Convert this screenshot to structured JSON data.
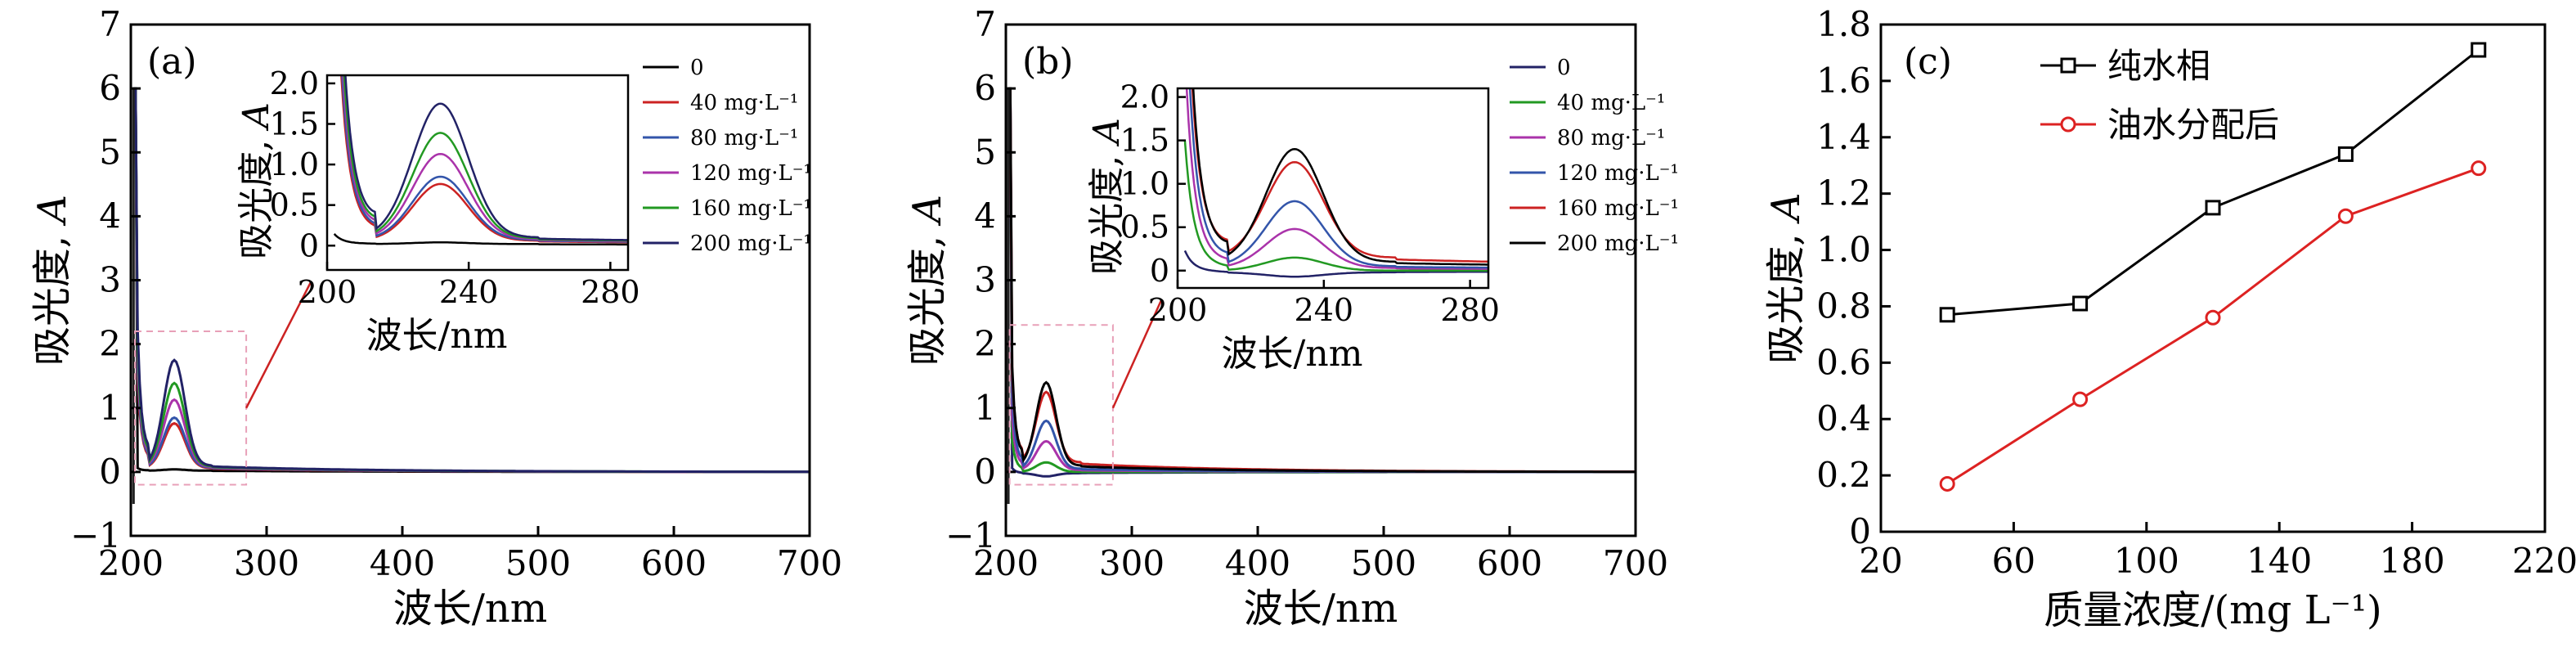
{
  "figure": {
    "panels": [
      {
        "id": "a",
        "label": "(a)",
        "chart_data": {
          "type": "line",
          "xlabel": "波长/nm",
          "ylabel": "吸光度, A",
          "xlim": [
            200,
            700
          ],
          "ylim": [
            -1,
            7
          ],
          "xticks": [
            "200",
            "300",
            "400",
            "500",
            "600",
            "700"
          ],
          "yticks": [
            "−1",
            "0",
            "1",
            "2",
            "3",
            "4",
            "5",
            "6",
            "7"
          ],
          "legend_position": "top-right",
          "series": [
            {
              "name": "0",
              "color": "#000000",
              "peak": 0.02,
              "base": 0.02,
              "steep": 0.1
            },
            {
              "name": "40 mg·L⁻¹",
              "color": "#cc2222",
              "peak": 0.7,
              "base": 0.06,
              "steep": 3.5
            },
            {
              "name": "80 mg·L⁻¹",
              "color": "#3355aa",
              "peak": 0.78,
              "base": 0.07,
              "steep": 3.8
            },
            {
              "name": "120 mg·L⁻¹",
              "color": "#aa33aa",
              "peak": 1.05,
              "base": 0.08,
              "steep": 4.2
            },
            {
              "name": "160 mg·L⁻¹",
              "color": "#229922",
              "peak": 1.3,
              "base": 0.09,
              "steep": 4.6
            },
            {
              "name": "200 mg·L⁻¹",
              "color": "#222266",
              "peak": 1.65,
              "base": 0.1,
              "steep": 5.2
            }
          ],
          "inset": {
            "xlabel": "波长/nm",
            "ylabel": "吸光度, A",
            "xlim": [
              200,
              285
            ],
            "ylim": [
              -0.3,
              2.1
            ],
            "xticks": [
              "200",
              "240",
              "280"
            ],
            "yticks": [
              "0",
              "0.5",
              "1.0",
              "1.5",
              "2.0"
            ]
          }
        }
      },
      {
        "id": "b",
        "label": "(b)",
        "chart_data": {
          "type": "line",
          "xlabel": "波长/nm",
          "ylabel": "吸光度, A",
          "xlim": [
            200,
            700
          ],
          "ylim": [
            -1,
            7
          ],
          "xticks": [
            "200",
            "300",
            "400",
            "500",
            "600",
            "700"
          ],
          "yticks": [
            "−1",
            "0",
            "1",
            "2",
            "3",
            "4",
            "5",
            "6",
            "7"
          ],
          "legend_position": "top-right",
          "series": [
            {
              "name": "0",
              "color": "#222266",
              "peak": -0.05,
              "base": -0.02,
              "steep": 0.2
            },
            {
              "name": "40 mg·L⁻¹",
              "color": "#229922",
              "peak": 0.15,
              "base": 0.0,
              "steep": 1.2
            },
            {
              "name": "80 mg·L⁻¹",
              "color": "#aa33aa",
              "peak": 0.45,
              "base": 0.03,
              "steep": 2.0
            },
            {
              "name": "120 mg·L⁻¹",
              "color": "#3355aa",
              "peak": 0.75,
              "base": 0.05,
              "steep": 2.8
            },
            {
              "name": "160 mg·L⁻¹",
              "color": "#cc2222",
              "peak": 1.1,
              "base": 0.15,
              "steep": 3.4
            },
            {
              "name": "200 mg·L⁻¹",
              "color": "#000000",
              "peak": 1.3,
              "base": 0.1,
              "steep": 3.8
            }
          ],
          "inset": {
            "xlabel": "波长/nm",
            "ylabel": "吸光度, A",
            "xlim": [
              200,
              285
            ],
            "ylim": [
              -0.2,
              2.1
            ],
            "xticks": [
              "200",
              "240",
              "280"
            ],
            "yticks": [
              "0",
              "0.5",
              "1.0",
              "1.5",
              "2.0"
            ]
          }
        }
      },
      {
        "id": "c",
        "label": "(c)",
        "chart_data": {
          "type": "line",
          "xlabel": "质量浓度/(mg L⁻¹)",
          "ylabel": "吸光度, A",
          "xlim": [
            20,
            220
          ],
          "ylim": [
            0,
            1.8
          ],
          "xticks": [
            "20",
            "60",
            "100",
            "140",
            "180",
            "220"
          ],
          "yticks": [
            "0",
            "0.2",
            "0.4",
            "0.6",
            "0.8",
            "1.0",
            "1.2",
            "1.4",
            "1.6",
            "1.8"
          ],
          "legend_position": "top-left",
          "x": [
            40,
            80,
            120,
            160,
            200
          ],
          "series": [
            {
              "name": "纯水相",
              "color": "#000000",
              "marker": "square",
              "values": [
                0.77,
                0.81,
                1.15,
                1.34,
                1.71
              ]
            },
            {
              "name": "油水分配后",
              "color": "#dd2222",
              "marker": "circle",
              "values": [
                0.17,
                0.47,
                0.76,
                1.12,
                1.29
              ]
            }
          ]
        }
      }
    ]
  }
}
